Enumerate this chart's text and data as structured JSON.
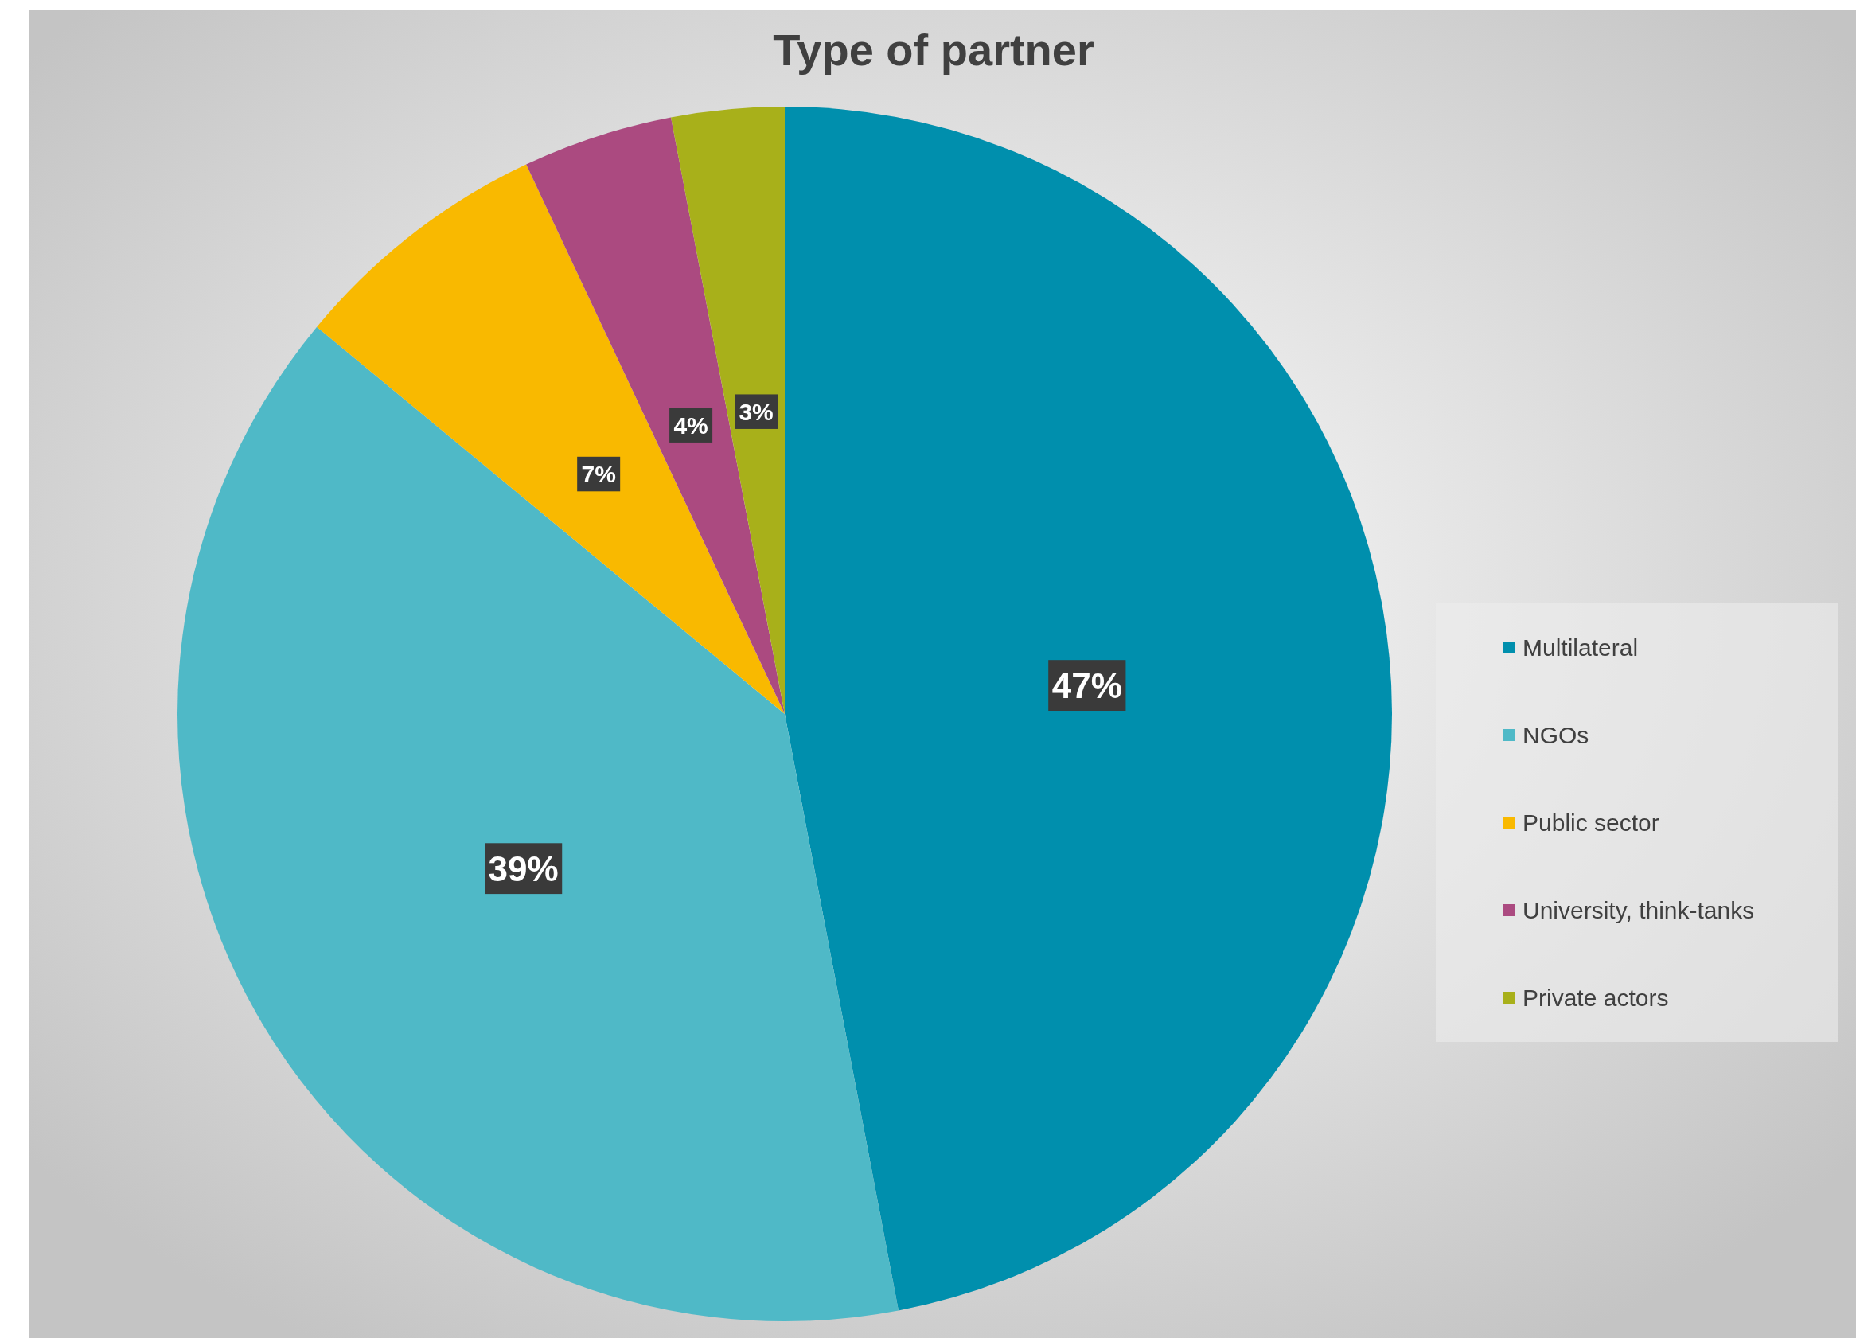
{
  "chart_data": {
    "type": "pie",
    "title": "Type of partner",
    "categories": [
      "Multilateral",
      "NGOs",
      "Public sector",
      "University, think-tanks",
      "Private actors"
    ],
    "values": [
      47,
      39,
      7,
      4,
      3
    ],
    "colors": [
      "#008fad",
      "#4fb9c7",
      "#f9b900",
      "#ab4a80",
      "#a8b01a"
    ],
    "value_labels": [
      "47%",
      "39%",
      "7%",
      "4%",
      "3%"
    ],
    "legend": "right"
  }
}
